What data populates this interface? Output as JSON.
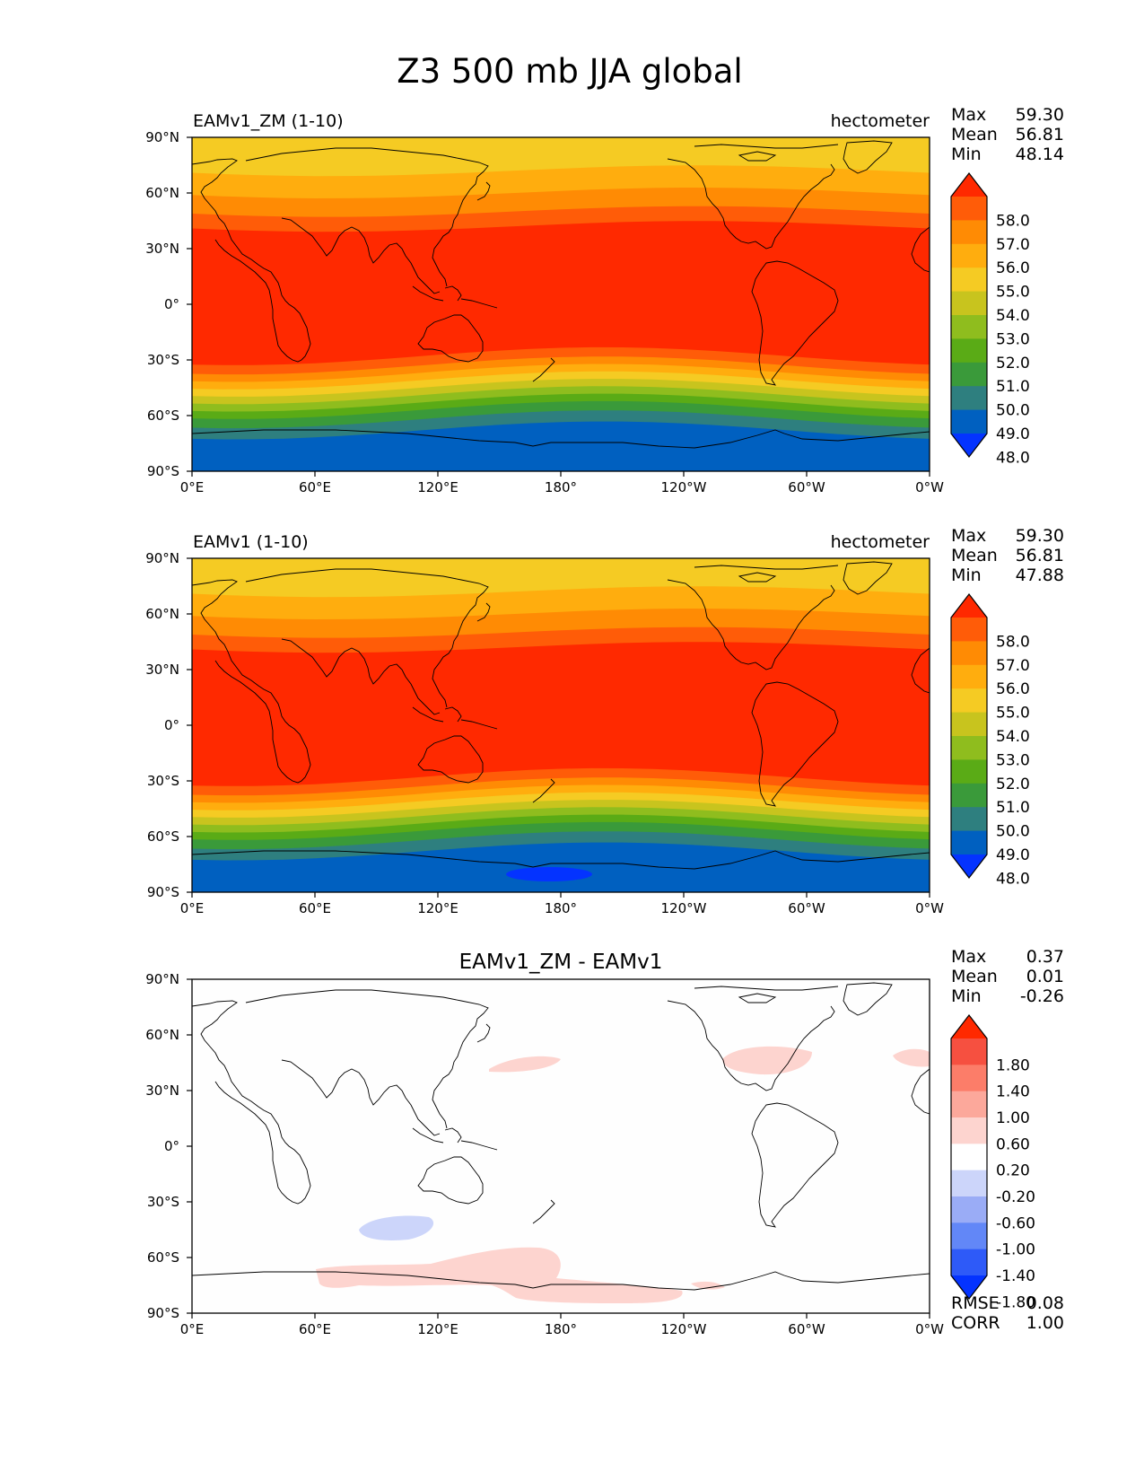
{
  "title": "Z3 500 mb JJA global",
  "lat_ticks": [
    "90°N",
    "60°N",
    "30°N",
    "0°",
    "30°S",
    "60°S",
    "90°S"
  ],
  "lon_ticks": [
    "0°E",
    "60°E",
    "120°E",
    "180°",
    "120°W",
    "60°W",
    "0°W"
  ],
  "colors": {
    "field": [
      "#0433ff",
      "#0060c0",
      "#2e7f7f",
      "#3a9a3a",
      "#5aab16",
      "#8fbd1e",
      "#c8c41e",
      "#f5cb23",
      "#ffad0e",
      "#ff8b04",
      "#ff5c08",
      "#ff2900"
    ],
    "diff": [
      "#0433ff",
      "#2e5af8",
      "#6287f7",
      "#9aacf6",
      "#ccd5fa",
      "#ffffff",
      "#fdd4cf",
      "#fca89b",
      "#fc7d69",
      "#f65040",
      "#ff2900"
    ],
    "coast": "#000000"
  },
  "chart_data": [
    {
      "type": "heatmap",
      "title_left": "EAMv1_ZM (1-10)",
      "title_right": "hectometer",
      "stats": {
        "labels": [
          "Max",
          "Mean",
          "Min"
        ],
        "values": [
          "59.30",
          "56.81",
          "48.14"
        ]
      },
      "colorbar": {
        "levels": [
          "58.0",
          "57.0",
          "56.0",
          "55.0",
          "54.0",
          "53.0",
          "52.0",
          "51.0",
          "50.0",
          "49.0",
          "48.0"
        ],
        "extend": "both"
      },
      "zonal_bands": "field level index by latitude from 90N to 90S",
      "description": "500 mb geopotential height, JJA, model EAMv1_ZM years 1-10"
    },
    {
      "type": "heatmap",
      "title_left": "EAMv1 (1-10)",
      "title_right": "hectometer",
      "stats": {
        "labels": [
          "Max",
          "Mean",
          "Min"
        ],
        "values": [
          "59.30",
          "56.81",
          "47.88"
        ]
      },
      "colorbar": {
        "levels": [
          "58.0",
          "57.0",
          "56.0",
          "55.0",
          "54.0",
          "53.0",
          "52.0",
          "51.0",
          "50.0",
          "49.0",
          "48.0"
        ],
        "extend": "both"
      },
      "description": "500 mb geopotential height, JJA, model EAMv1 years 1-10"
    },
    {
      "type": "heatmap",
      "title_center": "EAMv1_ZM - EAMv1",
      "stats": {
        "labels": [
          "Max",
          "Mean",
          "Min"
        ],
        "values": [
          "0.37",
          "0.01",
          "-0.26"
        ]
      },
      "colorbar": {
        "levels": [
          "1.80",
          "1.40",
          "1.00",
          "0.60",
          "0.20",
          "-0.20",
          "-0.60",
          "-1.00",
          "-1.40",
          "-1.80"
        ],
        "extend": "both"
      },
      "metrics": {
        "labels": [
          "RMSE",
          "CORR"
        ],
        "values": [
          "0.08",
          "1.00"
        ]
      }
    }
  ]
}
